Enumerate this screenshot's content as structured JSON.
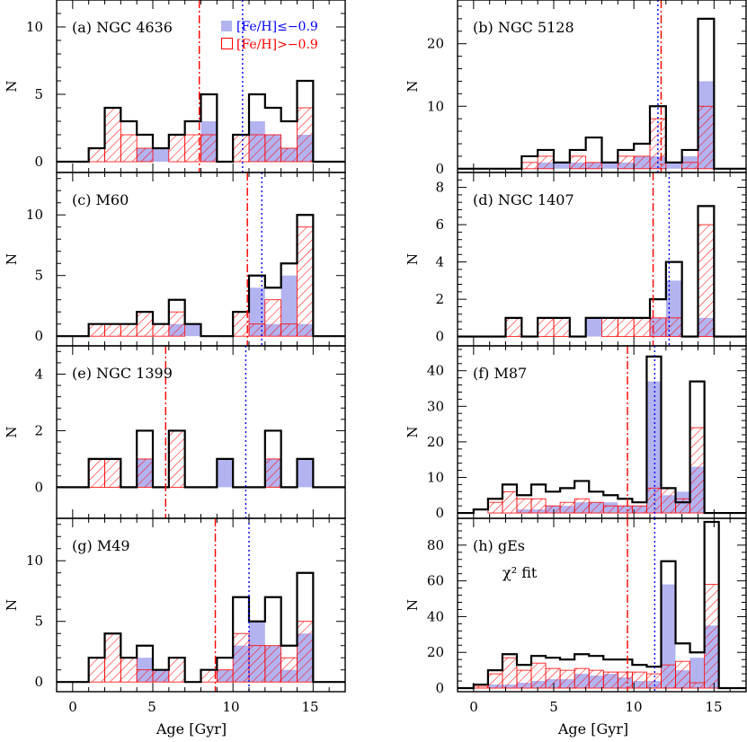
{
  "x_axis": {
    "label": "Age [Gyr]",
    "range": [
      -1,
      17
    ],
    "ticks": [
      0,
      5,
      10,
      15
    ],
    "tick_labels": [
      "0",
      "5",
      "10",
      "15"
    ]
  },
  "legend": {
    "metal_poor_label": "[Fe/H]≤−0.9",
    "metal_rich_label": "[Fe/H]>−0.9",
    "position": "top-right of panel (a)"
  },
  "colors": {
    "total": "#000000",
    "metal_poor": "#b3b3f0",
    "metal_poor_line": "#0000ff",
    "metal_rich": "#ff0000",
    "background": "#ffffff"
  },
  "bins": {
    "start": 0,
    "width": 1,
    "count": 16,
    "centers": [
      0.5,
      1.5,
      2.5,
      3.5,
      4.5,
      5.5,
      6.5,
      7.5,
      8.5,
      9.5,
      10.5,
      11.5,
      12.5,
      13.5,
      14.5,
      15.5
    ]
  },
  "chart_data": [
    {
      "type": "bar",
      "panel": "a",
      "title": "(a) NGC 4636",
      "ylabel": "N",
      "ylim": [
        -0.8,
        12
      ],
      "yticks": [
        0,
        5,
        10
      ],
      "total": [
        0,
        1,
        4,
        3,
        2,
        1,
        2,
        3,
        5,
        0,
        2,
        5,
        4,
        3,
        6,
        0
      ],
      "metal_poor": [
        0,
        0,
        0,
        0,
        1,
        1,
        0,
        0,
        3,
        0,
        0,
        3,
        2,
        1,
        2,
        0
      ],
      "metal_rich": [
        0,
        1,
        4,
        2,
        1,
        0,
        2,
        2,
        2,
        0,
        2,
        2,
        2,
        1,
        4,
        0
      ],
      "vline_metal_rich": 7.9,
      "vline_metal_poor": 10.6
    },
    {
      "type": "bar",
      "panel": "b",
      "title": "(b) NGC 5128",
      "ylabel": "N",
      "ylim": [
        -0.6,
        27
      ],
      "yticks": [
        0,
        10,
        20
      ],
      "total": [
        0,
        0,
        0,
        2,
        3,
        1,
        3,
        5,
        1,
        3,
        4,
        10,
        1,
        3,
        24,
        0
      ],
      "metal_poor": [
        0,
        0,
        0,
        0,
        1,
        1,
        1,
        1,
        1,
        1,
        2,
        2,
        1,
        2,
        14,
        0
      ],
      "metal_rich": [
        0,
        0,
        0,
        1,
        2,
        0,
        2,
        1,
        0,
        2,
        2,
        8,
        0,
        1,
        10,
        0
      ],
      "vline_metal_rich": 11.7,
      "vline_metal_poor": 11.5
    },
    {
      "type": "bar",
      "panel": "c",
      "title": "(c) M60",
      "ylabel": "N",
      "ylim": [
        -0.8,
        13.5
      ],
      "yticks": [
        0,
        5,
        10
      ],
      "total": [
        0,
        1,
        1,
        1,
        2,
        1,
        3,
        1,
        0,
        0,
        2,
        5,
        4,
        6,
        10,
        0
      ],
      "metal_poor": [
        0,
        0,
        0,
        0,
        0,
        0,
        1,
        1,
        0,
        0,
        0,
        4,
        1,
        5,
        1,
        0
      ],
      "metal_rich": [
        0,
        1,
        1,
        1,
        2,
        1,
        2,
        0,
        0,
        0,
        2,
        1,
        3,
        1,
        9,
        0
      ],
      "vline_metal_rich": 10.9,
      "vline_metal_poor": 11.8
    },
    {
      "type": "bar",
      "panel": "d",
      "title": "(d) NGC 1407",
      "ylabel": "N",
      "ylim": [
        -0.5,
        8.8
      ],
      "yticks": [
        0,
        2,
        4,
        6,
        8
      ],
      "total": [
        0,
        0,
        1,
        0,
        1,
        1,
        0,
        1,
        1,
        1,
        1,
        2,
        4,
        0,
        7,
        0
      ],
      "metal_poor": [
        0,
        0,
        0,
        0,
        0,
        0,
        0,
        1,
        0,
        0,
        0,
        1,
        3,
        0,
        1,
        0
      ],
      "metal_rich": [
        0,
        0,
        1,
        0,
        1,
        1,
        0,
        0,
        1,
        1,
        1,
        1,
        1,
        0,
        6,
        0
      ],
      "vline_metal_rich": 11.2,
      "vline_metal_poor": 12.2
    },
    {
      "type": "bar",
      "panel": "e",
      "title": "(e) NGC 1399",
      "ylabel": "N",
      "ylim": [
        -1.1,
        5
      ],
      "yticks": [
        0,
        2,
        4
      ],
      "total": [
        0,
        1,
        1,
        0,
        2,
        0,
        2,
        0,
        0,
        1,
        0,
        0,
        2,
        0,
        1,
        0
      ],
      "metal_poor": [
        0,
        0,
        0,
        0,
        1,
        0,
        0,
        0,
        0,
        1,
        0,
        0,
        1,
        0,
        1,
        0
      ],
      "metal_rich": [
        0,
        1,
        1,
        0,
        1,
        0,
        2,
        0,
        0,
        0,
        0,
        0,
        1,
        0,
        0,
        0
      ],
      "vline_metal_rich": 5.8,
      "vline_metal_poor": 10.8
    },
    {
      "type": "bar",
      "panel": "f",
      "title": "(f) M87",
      "ylabel": "N",
      "ylim": [
        -1.5,
        47
      ],
      "yticks": [
        0,
        10,
        20,
        30,
        40
      ],
      "total": [
        1,
        4,
        8,
        5,
        8,
        6,
        7,
        9,
        6,
        5,
        4,
        3,
        44,
        7,
        3,
        37,
        0
      ],
      "metal_poor": [
        0,
        0,
        0,
        1,
        1,
        2,
        2,
        3,
        3,
        3,
        2,
        2,
        37,
        5,
        6,
        13,
        0
      ],
      "metal_rich": [
        0,
        3,
        6,
        4,
        4,
        2,
        3,
        4,
        3,
        2,
        2,
        2,
        7,
        7,
        4,
        24,
        0
      ],
      "bin_width": 0.9,
      "vline_metal_rich": 9.6,
      "vline_metal_poor": 11.3
    },
    {
      "type": "bar",
      "panel": "g",
      "title": "(g) M49",
      "ylabel": "N",
      "ylim": [
        -0.8,
        13.5
      ],
      "yticks": [
        0,
        5,
        10
      ],
      "total": [
        0,
        2,
        4,
        2,
        3,
        1,
        2,
        0,
        1,
        2,
        7,
        5,
        7,
        3,
        9,
        0
      ],
      "metal_poor": [
        0,
        0,
        0,
        0,
        2,
        1,
        0,
        0,
        0,
        1,
        3,
        5,
        3,
        1,
        4,
        0
      ],
      "metal_rich": [
        0,
        2,
        4,
        2,
        1,
        1,
        2,
        0,
        1,
        1,
        4,
        3,
        3,
        2,
        5,
        0
      ],
      "vline_metal_rich": 8.9,
      "vline_metal_poor": 11.0
    },
    {
      "type": "bar",
      "panel": "h",
      "title": "(h) gEs",
      "subtitle": "χ² fit",
      "ylabel": "N",
      "ylim": [
        -2,
        95
      ],
      "yticks": [
        0,
        20,
        40,
        60,
        80
      ],
      "total": [
        2,
        10,
        19,
        13,
        18,
        17,
        16,
        19,
        18,
        16,
        16,
        13,
        12,
        71,
        25,
        20,
        93,
        0
      ],
      "metal_poor": [
        0,
        2,
        2,
        3,
        4,
        5,
        5,
        8,
        7,
        8,
        6,
        4,
        4,
        58,
        10,
        17,
        35,
        0
      ],
      "metal_rich": [
        1,
        8,
        17,
        10,
        14,
        11,
        10,
        11,
        10,
        9,
        9,
        9,
        8,
        13,
        15,
        3,
        58,
        0
      ],
      "bin_width": 0.9,
      "vline_metal_rich": 9.6,
      "vline_metal_poor": 11.3
    }
  ]
}
